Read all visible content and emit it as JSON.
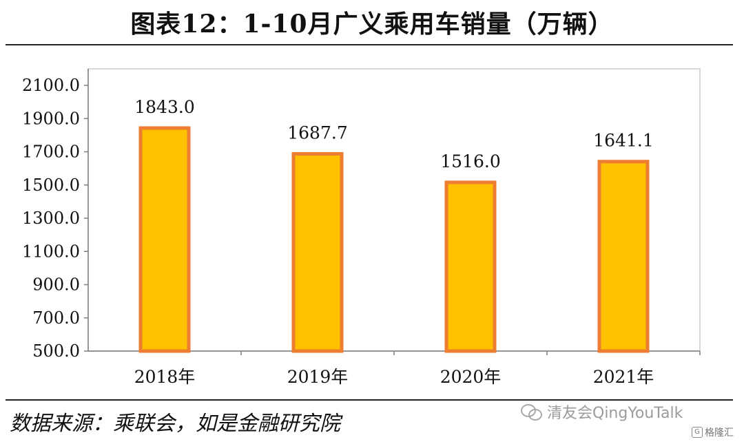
{
  "figure": {
    "title": "图表12：1-10月广义乘用车销量（万辆）",
    "source": "数据来源：乘联会，如是金融研究院"
  },
  "watermark": {
    "icon": "wechat-icon",
    "text": "清友会QingYouTalk"
  },
  "corner_logo": {
    "icon": "gelonghui-logo-icon",
    "text": "格隆汇"
  },
  "chart_data": {
    "type": "bar",
    "title": "图表12：1-10月广义乘用车销量（万辆）",
    "categories": [
      "2018年",
      "2019年",
      "2020年",
      "2021年"
    ],
    "values": [
      1843.0,
      1687.7,
      1516.0,
      1641.1
    ],
    "value_labels": [
      "1843.0",
      "1687.7",
      "1516.0",
      "1641.1"
    ],
    "ylim": [
      500,
      2100
    ],
    "yticks": [
      "500.0",
      "700.0",
      "900.0",
      "1100.0",
      "1300.0",
      "1500.0",
      "1700.0",
      "1900.0",
      "2100.0"
    ],
    "ytick_values": [
      500,
      700,
      900,
      1100,
      1300,
      1500,
      1700,
      1900,
      2100
    ],
    "xlabel": "",
    "ylabel": "",
    "grid": false,
    "legend": "none",
    "colors": {
      "bar_fill": "#FFC000",
      "bar_stroke": "#ED7D31",
      "plot_border": "#D9D9D9",
      "axis": "#7F7F7F"
    }
  }
}
